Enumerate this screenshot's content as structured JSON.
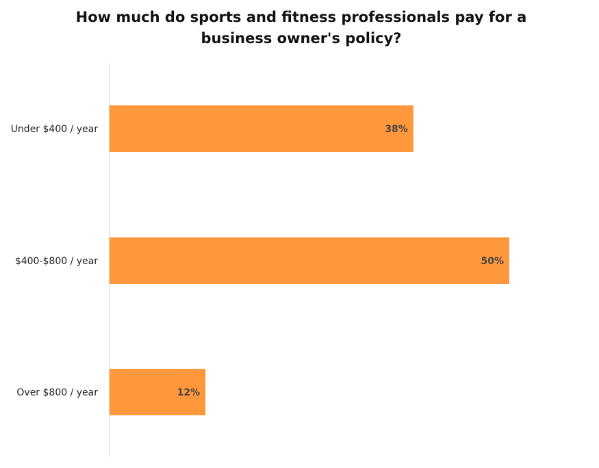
{
  "chart_data": {
    "type": "bar",
    "orientation": "horizontal",
    "title_lines": [
      "How much do sports and fitness professionals pay for a",
      "business owner's policy?"
    ],
    "categories": [
      "Under $400 / year",
      "$400-$800 / year",
      "Over $800 / year"
    ],
    "values": [
      38,
      50,
      12
    ],
    "data_labels": [
      "38%",
      "50%",
      "12%"
    ],
    "unit": "%",
    "grid": false,
    "bar_color": "#FF983C",
    "label_color": "#444444"
  }
}
